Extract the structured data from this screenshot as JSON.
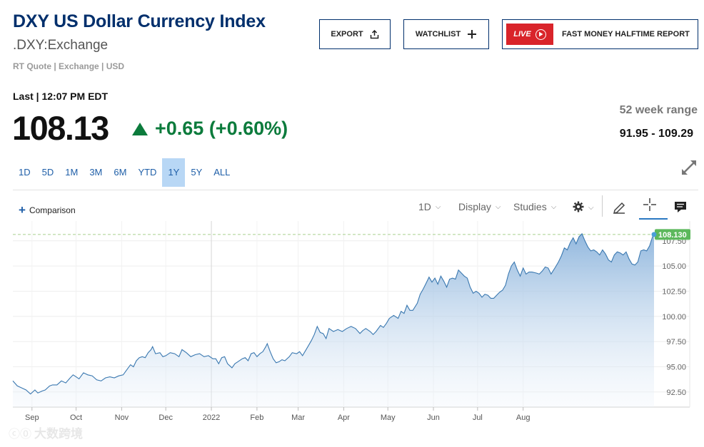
{
  "header": {
    "title": "DXY US Dollar Currency Index",
    "symbol": ".DXY:Exchange",
    "meta": "RT Quote | Exchange | USD"
  },
  "buttons": {
    "export": "EXPORT",
    "watchlist": "WATCHLIST",
    "live_badge": "LIVE",
    "fast_money": "FAST MONEY HALFTIME REPORT"
  },
  "quote": {
    "last_label": "Last | 12:07 PM EDT",
    "price": "108.13",
    "change": "+0.65 (+0.60%)",
    "change_color": "#0c7b3c",
    "week52_label": "52 week range",
    "week52_value": "91.95 - 109.29"
  },
  "ranges": [
    "1D",
    "5D",
    "1M",
    "3M",
    "6M",
    "YTD",
    "1Y",
    "5Y",
    "ALL"
  ],
  "active_range": "1Y",
  "toolbar": {
    "comparison": "Comparison",
    "interval": "1D",
    "display": "Display",
    "studies": "Studies"
  },
  "icons": [
    "export-icon",
    "plus-icon",
    "play-icon",
    "expand-icon",
    "settings-gear-icon",
    "pencil-icon",
    "crosshair-icon",
    "comment-icon"
  ],
  "watermark": "大数跨境",
  "chart_data": {
    "type": "area",
    "line_color": "#3a78b0",
    "last_value_label": "108.130",
    "last_value_color": "#5cb85c",
    "ylim": [
      91.0,
      108.9
    ],
    "y_ticks": [
      92.5,
      95.0,
      97.5,
      100.0,
      102.5,
      105.0,
      107.5
    ],
    "y_tick_labels": [
      "92.50",
      "95.00",
      "97.50",
      "100.00",
      "102.50",
      "105.00",
      "107.50"
    ],
    "x_ticks": [
      {
        "label": "Sep",
        "x": 13
      },
      {
        "label": "Oct",
        "x": 43
      },
      {
        "label": "Nov",
        "x": 74
      },
      {
        "label": "Dec",
        "x": 104
      },
      {
        "label": "2022",
        "x": 135
      },
      {
        "label": "Feb",
        "x": 166
      },
      {
        "label": "Mar",
        "x": 194
      },
      {
        "label": "Apr",
        "x": 225
      },
      {
        "label": "May",
        "x": 255
      },
      {
        "label": "Jun",
        "x": 286
      },
      {
        "label": "Jul",
        "x": 316
      },
      {
        "label": "Aug",
        "x": 347
      }
    ],
    "x_unit": "days since Aug 19, 2021",
    "points": [
      [
        0,
        93.6
      ],
      [
        3,
        93.1
      ],
      [
        6,
        92.9
      ],
      [
        9,
        92.7
      ],
      [
        12,
        92.3
      ],
      [
        15,
        92.7
      ],
      [
        17,
        92.4
      ],
      [
        20,
        92.6
      ],
      [
        22,
        92.7
      ],
      [
        25,
        93.1
      ],
      [
        27,
        93.2
      ],
      [
        30,
        93.2
      ],
      [
        33,
        93.6
      ],
      [
        36,
        93.4
      ],
      [
        39,
        93.9
      ],
      [
        41,
        94.2
      ],
      [
        43,
        94.0
      ],
      [
        45,
        93.8
      ],
      [
        48,
        94.4
      ],
      [
        51,
        94.2
      ],
      [
        54,
        94.1
      ],
      [
        57,
        93.7
      ],
      [
        60,
        93.6
      ],
      [
        63,
        93.9
      ],
      [
        66,
        94.0
      ],
      [
        69,
        93.9
      ],
      [
        72,
        94.1
      ],
      [
        75,
        94.2
      ],
      [
        77,
        94.6
      ],
      [
        80,
        95.2
      ],
      [
        82,
        95.0
      ],
      [
        84,
        95.6
      ],
      [
        86,
        95.9
      ],
      [
        88,
        96.0
      ],
      [
        90,
        95.9
      ],
      [
        92,
        96.4
      ],
      [
        94,
        96.7
      ],
      [
        95,
        97.0
      ],
      [
        97,
        96.3
      ],
      [
        100,
        96.4
      ],
      [
        102,
        96.0
      ],
      [
        104,
        96.1
      ],
      [
        107,
        96.4
      ],
      [
        110,
        96.3
      ],
      [
        113,
        96.0
      ],
      [
        115,
        96.7
      ],
      [
        118,
        96.4
      ],
      [
        121,
        96.0
      ],
      [
        124,
        96.2
      ],
      [
        127,
        96.3
      ],
      [
        130,
        96.0
      ],
      [
        133,
        96.1
      ],
      [
        136,
        95.8
      ],
      [
        138,
        95.8
      ],
      [
        140,
        95.3
      ],
      [
        142,
        95.9
      ],
      [
        144,
        96.0
      ],
      [
        146,
        95.3
      ],
      [
        149,
        94.9
      ],
      [
        151,
        95.3
      ],
      [
        153,
        95.5
      ],
      [
        156,
        95.8
      ],
      [
        158,
        95.9
      ],
      [
        160,
        95.6
      ],
      [
        162,
        96.3
      ],
      [
        164,
        96.4
      ],
      [
        166,
        96.0
      ],
      [
        168,
        96.3
      ],
      [
        170,
        96.5
      ],
      [
        172,
        97.0
      ],
      [
        173,
        97.3
      ],
      [
        175,
        96.5
      ],
      [
        177,
        95.8
      ],
      [
        179,
        95.4
      ],
      [
        181,
        95.5
      ],
      [
        183,
        95.7
      ],
      [
        185,
        95.6
      ],
      [
        188,
        96.0
      ],
      [
        190,
        96.4
      ],
      [
        193,
        96.3
      ],
      [
        195,
        96.5
      ],
      [
        197,
        96.1
      ],
      [
        199,
        96.6
      ],
      [
        201,
        97.1
      ],
      [
        203,
        97.6
      ],
      [
        205,
        98.2
      ],
      [
        207,
        99.0
      ],
      [
        209,
        98.4
      ],
      [
        211,
        98.3
      ],
      [
        213,
        97.8
      ],
      [
        215,
        98.8
      ],
      [
        218,
        98.5
      ],
      [
        221,
        98.7
      ],
      [
        224,
        98.5
      ],
      [
        227,
        98.8
      ],
      [
        230,
        99.0
      ],
      [
        233,
        98.8
      ],
      [
        236,
        98.3
      ],
      [
        238,
        98.6
      ],
      [
        240,
        98.8
      ],
      [
        243,
        98.5
      ],
      [
        245,
        98.2
      ],
      [
        247,
        98.5
      ],
      [
        250,
        99.1
      ],
      [
        252,
        98.9
      ],
      [
        254,
        99.3
      ],
      [
        256,
        99.8
      ],
      [
        259,
        100.1
      ],
      [
        262,
        99.8
      ],
      [
        264,
        100.5
      ],
      [
        266,
        100.3
      ],
      [
        268,
        101.1
      ],
      [
        270,
        100.6
      ],
      [
        272,
        100.6
      ],
      [
        275,
        101.3
      ],
      [
        277,
        102.2
      ],
      [
        279,
        102.7
      ],
      [
        281,
        103.3
      ],
      [
        283,
        103.9
      ],
      [
        285,
        103.4
      ],
      [
        287,
        103.8
      ],
      [
        289,
        103.2
      ],
      [
        291,
        104.0
      ],
      [
        293,
        103.5
      ],
      [
        295,
        102.9
      ],
      [
        297,
        103.7
      ],
      [
        299,
        103.8
      ],
      [
        301,
        103.7
      ],
      [
        303,
        104.6
      ],
      [
        305,
        104.3
      ],
      [
        307,
        104.0
      ],
      [
        309,
        103.8
      ],
      [
        311,
        102.9
      ],
      [
        313,
        102.3
      ],
      [
        315,
        102.5
      ],
      [
        317,
        102.3
      ],
      [
        319,
        101.9
      ],
      [
        321,
        102.2
      ],
      [
        323,
        102.1
      ],
      [
        325,
        101.8
      ],
      [
        327,
        101.8
      ],
      [
        329,
        102.1
      ],
      [
        331,
        102.4
      ],
      [
        333,
        102.6
      ],
      [
        335,
        103.1
      ],
      [
        337,
        104.2
      ],
      [
        339,
        105.0
      ],
      [
        341,
        105.4
      ],
      [
        343,
        104.6
      ],
      [
        345,
        104.0
      ],
      [
        347,
        104.8
      ],
      [
        349,
        104.2
      ],
      [
        351,
        104.4
      ],
      [
        353,
        104.4
      ],
      [
        356,
        104.3
      ],
      [
        358,
        104.2
      ],
      [
        360,
        104.5
      ],
      [
        362,
        104.9
      ],
      [
        364,
        104.8
      ],
      [
        366,
        104.2
      ],
      [
        369,
        104.9
      ],
      [
        371,
        105.4
      ],
      [
        373,
        106.0
      ],
      [
        375,
        106.8
      ],
      [
        377,
        106.6
      ],
      [
        379,
        107.3
      ],
      [
        381,
        107.8
      ],
      [
        383,
        107.2
      ],
      [
        385,
        107.9
      ],
      [
        387,
        108.2
      ],
      [
        389,
        107.5
      ],
      [
        391,
        106.9
      ],
      [
        393,
        106.5
      ],
      [
        395,
        106.6
      ],
      [
        397,
        106.4
      ],
      [
        399,
        106.1
      ],
      [
        401,
        106.6
      ],
      [
        403,
        106.2
      ],
      [
        405,
        105.6
      ],
      [
        407,
        105.4
      ],
      [
        409,
        106.1
      ],
      [
        411,
        106.4
      ],
      [
        413,
        106.3
      ],
      [
        415,
        106.1
      ],
      [
        417,
        106.4
      ],
      [
        419,
        105.7
      ],
      [
        421,
        105.2
      ],
      [
        423,
        105.1
      ],
      [
        425,
        105.4
      ],
      [
        427,
        106.5
      ],
      [
        429,
        106.6
      ],
      [
        431,
        106.5
      ],
      [
        433,
        107.0
      ],
      [
        435,
        107.9
      ],
      [
        436,
        108.13
      ]
    ]
  }
}
